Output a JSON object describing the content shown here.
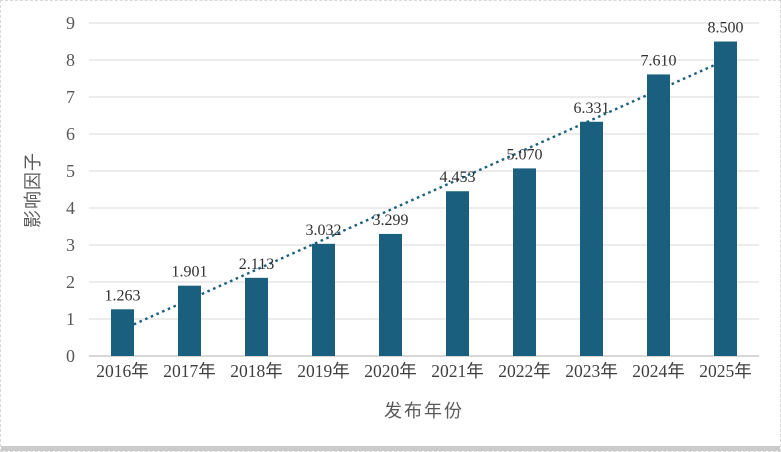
{
  "chart_data": {
    "type": "bar",
    "title": "",
    "categories": [
      "2016年",
      "2017年",
      "2018年",
      "2019年",
      "2020年",
      "2021年",
      "2022年",
      "2023年",
      "2024年",
      "2025年"
    ],
    "values": [
      1.263,
      1.901,
      2.113,
      3.032,
      3.299,
      4.453,
      5.07,
      6.331,
      7.61,
      8.5
    ],
    "data_labels": [
      "1.263",
      "1.901",
      "2.113",
      "3.032",
      "3.299",
      "4.453",
      "5.070",
      "6.331",
      "7.610",
      "8.500"
    ],
    "xlabel": "发布年份",
    "ylabel": "影响因子",
    "ylim": [
      0,
      9
    ],
    "ytick_step": 1,
    "ytick_labels": [
      "0",
      "1",
      "2",
      "3",
      "4",
      "5",
      "6",
      "7",
      "8",
      "9"
    ],
    "grid": "horizontal",
    "legend": "none",
    "trendline": {
      "type": "linear",
      "style": "dotted"
    },
    "colors": {
      "bar": "#1a607e",
      "trendline": "#1a607e",
      "gridline": "#d9d9d9",
      "axis_line": "#bfbfbf",
      "tick_text": "#595959",
      "category_text": "#3f3f3f",
      "data_label_text": "#303030",
      "axis_title_text": "#595959",
      "page_bottom_border": "#cbcbcb",
      "background": "#ffffff"
    }
  }
}
